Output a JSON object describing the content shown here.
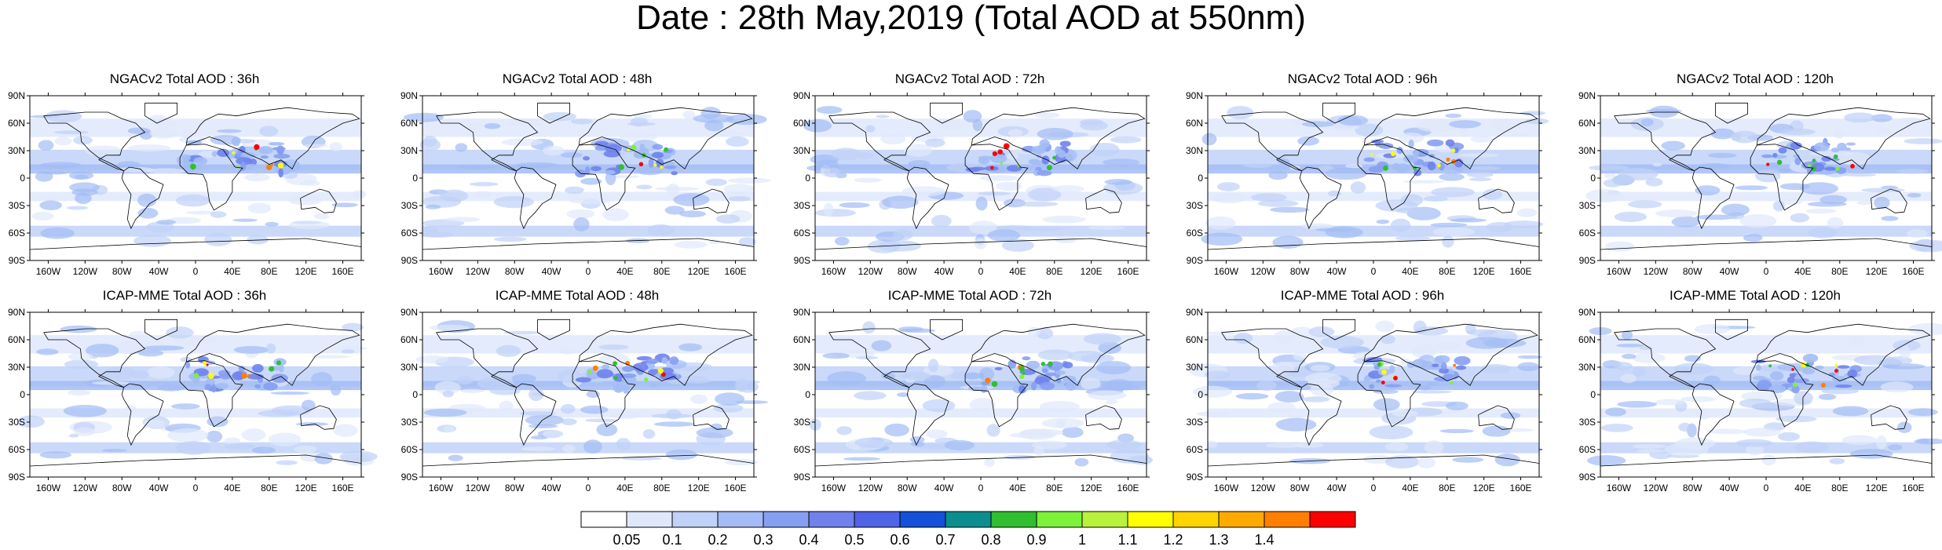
{
  "title": "Date : 28th May,2019 (Total AOD at 550nm)",
  "lon_ticks": [
    "160W",
    "120W",
    "80W",
    "40W",
    "0",
    "40E",
    "80E",
    "120E",
    "160E"
  ],
  "lat_ticks": [
    "90N",
    "60N",
    "30N",
    "0",
    "30S",
    "60S",
    "90S"
  ],
  "rows": [
    {
      "model": "NGACv2",
      "panels": [
        {
          "title": "NGACv2 Total AOD : 36h"
        },
        {
          "title": "NGACv2 Total AOD : 48h"
        },
        {
          "title": "NGACv2 Total AOD : 72h"
        },
        {
          "title": "NGACv2 Total AOD : 96h"
        },
        {
          "title": "NGACv2 Total AOD : 120h"
        }
      ]
    },
    {
      "model": "ICAP-MME",
      "panels": [
        {
          "title": "ICAP-MME Total AOD : 36h"
        },
        {
          "title": "ICAP-MME Total AOD : 48h"
        },
        {
          "title": "ICAP-MME Total AOD : 72h"
        },
        {
          "title": "ICAP-MME Total AOD : 96h"
        },
        {
          "title": "ICAP-MME Total AOD : 120h"
        }
      ]
    }
  ],
  "colorbar": {
    "labels": [
      "0.05",
      "0.1",
      "0.2",
      "0.3",
      "0.4",
      "0.5",
      "0.6",
      "0.7",
      "0.8",
      "0.9",
      "1",
      "1.1",
      "1.2",
      "1.3",
      "1.4"
    ],
    "colors": [
      "#ffffff",
      "#dfe8fb",
      "#c1d2f8",
      "#a3bcf5",
      "#869ff1",
      "#6f82ec",
      "#5062e6",
      "#1450d8",
      "#0c8e8e",
      "#2fbf2f",
      "#7cf23a",
      "#b8f23c",
      "#ffff00",
      "#ffd400",
      "#ffaa00",
      "#ff7f00",
      "#ff0000"
    ]
  },
  "map_colors": {
    "ocean_light": "#dfe8fb",
    "low": "#c1d2f8",
    "mid": "#a3bcf5",
    "mid2": "#869ff1",
    "high": "#6f82ec"
  }
}
